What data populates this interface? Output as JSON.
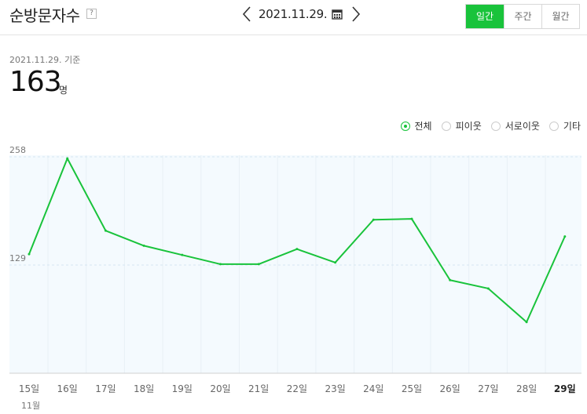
{
  "header": {
    "title": "순방문자수",
    "help": "?",
    "date": "2021.11.29.",
    "tabs": [
      {
        "label": "일간",
        "active": true
      },
      {
        "label": "주간",
        "active": false
      },
      {
        "label": "월간",
        "active": false
      }
    ]
  },
  "summary": {
    "base_date": "2021.11.29. 기준",
    "value": "163",
    "unit": "명"
  },
  "legend": [
    {
      "label": "전체",
      "checked": true
    },
    {
      "label": "피이웃",
      "checked": false
    },
    {
      "label": "서로이웃",
      "checked": false
    },
    {
      "label": "기타",
      "checked": false
    }
  ],
  "colors": {
    "accent": "#19c33b",
    "chart_fill": "#f4fafe"
  },
  "chart_data": {
    "type": "line",
    "categories": [
      "15일",
      "16일",
      "17일",
      "18일",
      "19일",
      "20일",
      "21일",
      "22일",
      "23일",
      "24일",
      "25일",
      "26일",
      "27일",
      "28일",
      "29일"
    ],
    "month_label": "11월",
    "y_ticks": [
      "258",
      "129"
    ],
    "series": [
      {
        "values": [
          142,
          256,
          170,
          152,
          141,
          130,
          130,
          148,
          132,
          183,
          184,
          111,
          101,
          61,
          163
        ]
      }
    ],
    "ylim": [
      0,
      258
    ]
  }
}
